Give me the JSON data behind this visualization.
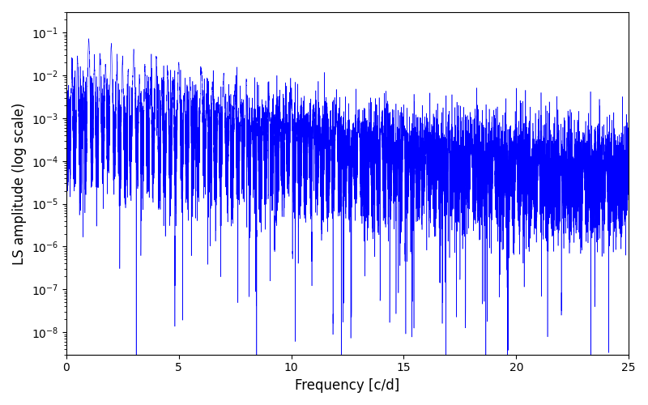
{
  "xlabel": "Frequency [c/d]",
  "ylabel": "LS amplitude (log scale)",
  "line_color": "#0000FF",
  "xlim": [
    0,
    25
  ],
  "ylim": [
    3e-09,
    0.3
  ],
  "xfreq_max": 25.0,
  "n_points": 15000,
  "seed": 137,
  "figsize": [
    8.0,
    5.0
  ],
  "dpi": 100,
  "background_color": "#ffffff"
}
